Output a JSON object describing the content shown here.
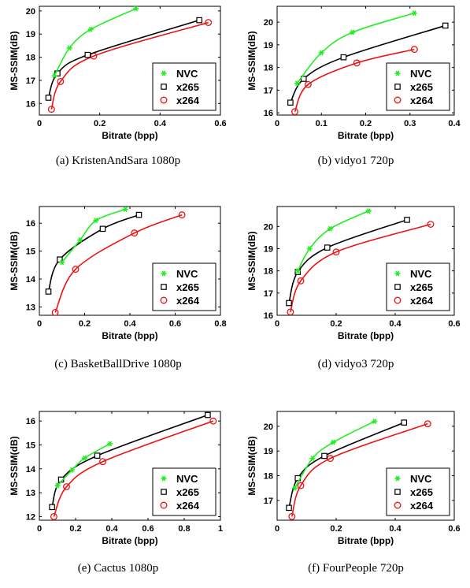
{
  "figure": {
    "legend_position": "bottom-right",
    "grid": false,
    "colors": {
      "NVC": "#22ee22",
      "x265": "#000000",
      "x264": "#ee1111"
    },
    "markers": {
      "NVC": "asterisk",
      "x265": "square",
      "x264": "circle"
    }
  },
  "chart_data": [
    {
      "type": "line",
      "caption": "(a)  KristenAndSara 1080p",
      "xlabel": "Bitrate (bpp)",
      "ylabel": "MS-SSIM(dB)",
      "xlim": [
        0,
        0.6
      ],
      "ylim": [
        15.5,
        20.2
      ],
      "xticks": [
        0,
        0.2,
        0.4,
        0.6
      ],
      "xticklabels": [
        "0",
        "0.2",
        "0.4",
        "0.6"
      ],
      "yticks": [
        16,
        17,
        18,
        19,
        20
      ],
      "yticklabels": [
        "16",
        "17",
        "18",
        "19",
        "20"
      ],
      "series": [
        {
          "name": "NVC",
          "points": [
            [
              0.05,
              17.2
            ],
            [
              0.1,
              18.4
            ],
            [
              0.17,
              19.2
            ],
            [
              0.32,
              20.1
            ]
          ]
        },
        {
          "name": "x265",
          "points": [
            [
              0.03,
              16.25
            ],
            [
              0.06,
              17.3
            ],
            [
              0.16,
              18.1
            ],
            [
              0.53,
              19.6
            ]
          ]
        },
        {
          "name": "x264",
          "points": [
            [
              0.04,
              15.75
            ],
            [
              0.07,
              16.95
            ],
            [
              0.18,
              18.05
            ],
            [
              0.56,
              19.5
            ]
          ]
        }
      ]
    },
    {
      "type": "line",
      "caption": "(b)  vidyo1 720p",
      "xlabel": "Bitrate (bpp)",
      "ylabel": "MS-SSIM(dB)",
      "xlim": [
        0,
        0.4
      ],
      "ylim": [
        15.9,
        20.7
      ],
      "xticks": [
        0,
        0.1,
        0.2,
        0.3,
        0.4
      ],
      "xticklabels": [
        "0",
        "0.1",
        "0.2",
        "0.3",
        "0.4"
      ],
      "yticks": [
        16,
        17,
        18,
        19,
        20
      ],
      "yticklabels": [
        "16",
        "17",
        "18",
        "19",
        "20"
      ],
      "series": [
        {
          "name": "NVC",
          "points": [
            [
              0.045,
              17.3
            ],
            [
              0.1,
              18.65
            ],
            [
              0.17,
              19.55
            ],
            [
              0.31,
              20.4
            ]
          ]
        },
        {
          "name": "x265",
          "points": [
            [
              0.03,
              16.45
            ],
            [
              0.06,
              17.5
            ],
            [
              0.15,
              18.45
            ],
            [
              0.38,
              19.85
            ]
          ]
        },
        {
          "name": "x264",
          "points": [
            [
              0.04,
              16.05
            ],
            [
              0.07,
              17.25
            ],
            [
              0.18,
              18.2
            ],
            [
              0.31,
              18.8
            ]
          ]
        }
      ]
    },
    {
      "type": "line",
      "caption": "(c)  BasketBallDrive 1080p",
      "xlabel": "Bitrate (bpp)",
      "ylabel": "MS-SSIM(dB)",
      "xlim": [
        0,
        0.8
      ],
      "ylim": [
        12.7,
        16.6
      ],
      "xticks": [
        0,
        0.2,
        0.4,
        0.6,
        0.8
      ],
      "xticklabels": [
        "0",
        "0.2",
        "0.4",
        "0.6",
        "0.8"
      ],
      "yticks": [
        13,
        14,
        15,
        16
      ],
      "yticklabels": [
        "13",
        "14",
        "15",
        "16"
      ],
      "series": [
        {
          "name": "NVC",
          "points": [
            [
              0.1,
              14.6
            ],
            [
              0.18,
              15.4
            ],
            [
              0.25,
              16.1
            ],
            [
              0.38,
              16.5
            ]
          ]
        },
        {
          "name": "x265",
          "points": [
            [
              0.04,
              13.55
            ],
            [
              0.09,
              14.7
            ],
            [
              0.28,
              15.8
            ],
            [
              0.44,
              16.3
            ]
          ]
        },
        {
          "name": "x264",
          "points": [
            [
              0.07,
              12.8
            ],
            [
              0.16,
              14.35
            ],
            [
              0.42,
              15.65
            ],
            [
              0.63,
              16.3
            ]
          ]
        }
      ]
    },
    {
      "type": "line",
      "caption": "(d)  vidyo3 720p",
      "xlabel": "Bitrate (bpp)",
      "ylabel": "MS-SSIM(dB)",
      "xlim": [
        0,
        0.6
      ],
      "ylim": [
        16,
        20.9
      ],
      "xticks": [
        0,
        0.2,
        0.4,
        0.6
      ],
      "xticklabels": [
        "0",
        "0.2",
        "0.4",
        "0.6"
      ],
      "yticks": [
        16,
        17,
        18,
        19,
        20
      ],
      "yticklabels": [
        "16",
        "17",
        "18",
        "19",
        "20"
      ],
      "series": [
        {
          "name": "NVC",
          "points": [
            [
              0.07,
              18.0
            ],
            [
              0.11,
              19.0
            ],
            [
              0.18,
              19.9
            ],
            [
              0.31,
              20.7
            ]
          ]
        },
        {
          "name": "x265",
          "points": [
            [
              0.04,
              16.55
            ],
            [
              0.07,
              17.95
            ],
            [
              0.17,
              19.05
            ],
            [
              0.44,
              20.3
            ]
          ]
        },
        {
          "name": "x264",
          "points": [
            [
              0.045,
              16.15
            ],
            [
              0.08,
              17.55
            ],
            [
              0.2,
              18.85
            ],
            [
              0.52,
              20.1
            ]
          ]
        }
      ]
    },
    {
      "type": "line",
      "caption": "(e)  Cactus 1080p",
      "xlabel": "Bitrate (bpp)",
      "ylabel": "MS-SSIM(dB)",
      "xlim": [
        0,
        1
      ],
      "ylim": [
        11.85,
        16.4
      ],
      "xticks": [
        0,
        0.2,
        0.4,
        0.6,
        0.8,
        1
      ],
      "xticklabels": [
        "0",
        "0.2",
        "0.4",
        "0.6",
        "0.8",
        "1"
      ],
      "yticks": [
        12,
        13,
        14,
        15,
        16
      ],
      "yticklabels": [
        "12",
        "13",
        "14",
        "15",
        "16"
      ],
      "series": [
        {
          "name": "NVC",
          "points": [
            [
              0.1,
              13.3
            ],
            [
              0.18,
              13.95
            ],
            [
              0.25,
              14.45
            ],
            [
              0.39,
              15.05
            ]
          ]
        },
        {
          "name": "x265",
          "points": [
            [
              0.07,
              12.4
            ],
            [
              0.12,
              13.55
            ],
            [
              0.32,
              14.55
            ],
            [
              0.93,
              16.25
            ]
          ]
        },
        {
          "name": "x264",
          "points": [
            [
              0.08,
              12.0
            ],
            [
              0.15,
              13.25
            ],
            [
              0.35,
              14.3
            ],
            [
              0.96,
              16.0
            ]
          ]
        }
      ]
    },
    {
      "type": "line",
      "caption": "(f)  FourPeople 720p",
      "xlabel": "Bitrate (bpp)",
      "ylabel": "MS-SSIM(dB)",
      "xlim": [
        0,
        0.6
      ],
      "ylim": [
        16.2,
        20.6
      ],
      "xticks": [
        0,
        0.2,
        0.4,
        0.6
      ],
      "xticklabels": [
        "0",
        "0.2",
        "0.4",
        "0.6"
      ],
      "yticks": [
        17,
        18,
        19,
        20
      ],
      "yticklabels": [
        "17",
        "18",
        "19",
        "20"
      ],
      "series": [
        {
          "name": "NVC",
          "points": [
            [
              0.06,
              17.5
            ],
            [
              0.12,
              18.7
            ],
            [
              0.19,
              19.35
            ],
            [
              0.33,
              20.2
            ]
          ]
        },
        {
          "name": "x265",
          "points": [
            [
              0.04,
              16.7
            ],
            [
              0.07,
              17.9
            ],
            [
              0.16,
              18.8
            ],
            [
              0.43,
              20.15
            ]
          ]
        },
        {
          "name": "x264",
          "points": [
            [
              0.05,
              16.35
            ],
            [
              0.08,
              17.6
            ],
            [
              0.18,
              18.7
            ],
            [
              0.51,
              20.1
            ]
          ]
        }
      ]
    }
  ]
}
